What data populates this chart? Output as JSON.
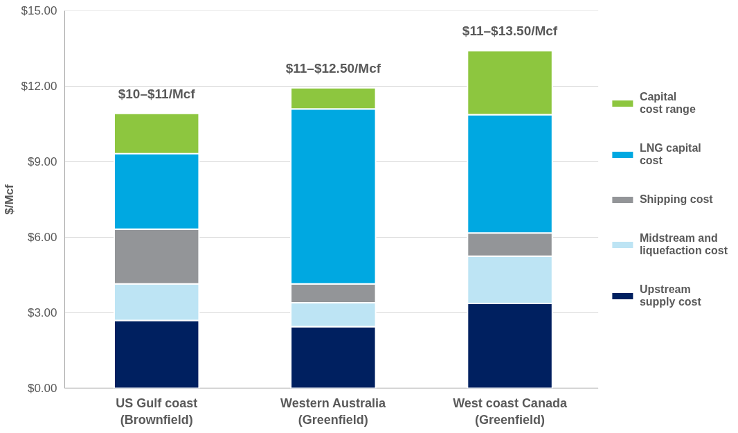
{
  "chart_data": {
    "type": "bar",
    "stacked": true,
    "ylabel": "$/Mcf",
    "categories": [
      "US Gulf coast\n(Brownfield)",
      "Western Australia\n(Greenfield)",
      "West coast Canada\n(Greenfield)"
    ],
    "series": [
      {
        "name": "Upstream\nsupply cost",
        "color": "#002060",
        "values": [
          2.7,
          2.45,
          3.37
        ]
      },
      {
        "name": "Midstream and\nliquefaction cost",
        "color": "#bde4f4",
        "values": [
          1.45,
          0.95,
          1.88
        ]
      },
      {
        "name": "Shipping cost",
        "color": "#939598",
        "values": [
          2.17,
          0.75,
          0.92
        ]
      },
      {
        "name": "LNG capital\ncost",
        "color": "#00a8e1",
        "values": [
          3.0,
          6.95,
          4.7
        ]
      },
      {
        "name": "Capital\ncost range",
        "color": "#8dc63f",
        "values": [
          1.6,
          0.84,
          2.54
        ]
      }
    ],
    "ylim": [
      0,
      15
    ],
    "yticks": [
      {
        "value": 0,
        "label": "$0.00"
      },
      {
        "value": 3,
        "label": "$3.00"
      },
      {
        "value": 6,
        "label": "$6.00"
      },
      {
        "value": 9,
        "label": "$9.00"
      },
      {
        "value": 12,
        "label": "$12.00"
      },
      {
        "value": 15,
        "label": "$15.00"
      }
    ],
    "grid": "y",
    "legend": "right",
    "annotations": [
      "$10–$11/Mcf",
      "$11–$12.50/Mcf",
      "$11–$13.50/Mcf"
    ]
  }
}
